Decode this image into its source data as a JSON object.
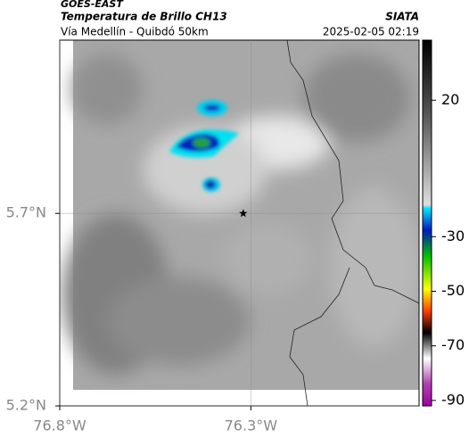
{
  "header": {
    "source": "GOES-EAST",
    "title": "Temperatura de Brillo CH13",
    "agency": "SIATA",
    "subtitle": "Vía Medellín - Quibdó 50km",
    "datetime": "2025-02-05 02:19"
  },
  "map": {
    "lonlim": [
      -76.8,
      -75.86
    ],
    "latlim": [
      5.2,
      6.15
    ],
    "lonticks": [
      {
        "value": -76.8,
        "label": "76.8°W"
      },
      {
        "value": -76.3,
        "label": "76.3°W"
      }
    ],
    "latticks": [
      {
        "value": 5.2,
        "label": "5.2°N"
      },
      {
        "value": 5.7,
        "label": "5.7°N"
      }
    ],
    "marker": {
      "lon": -76.32,
      "lat": 5.7
    }
  },
  "colorbar": {
    "lim": [
      -92,
      42
    ],
    "ticks": [
      20,
      -30,
      -50,
      -70,
      -90
    ]
  }
}
